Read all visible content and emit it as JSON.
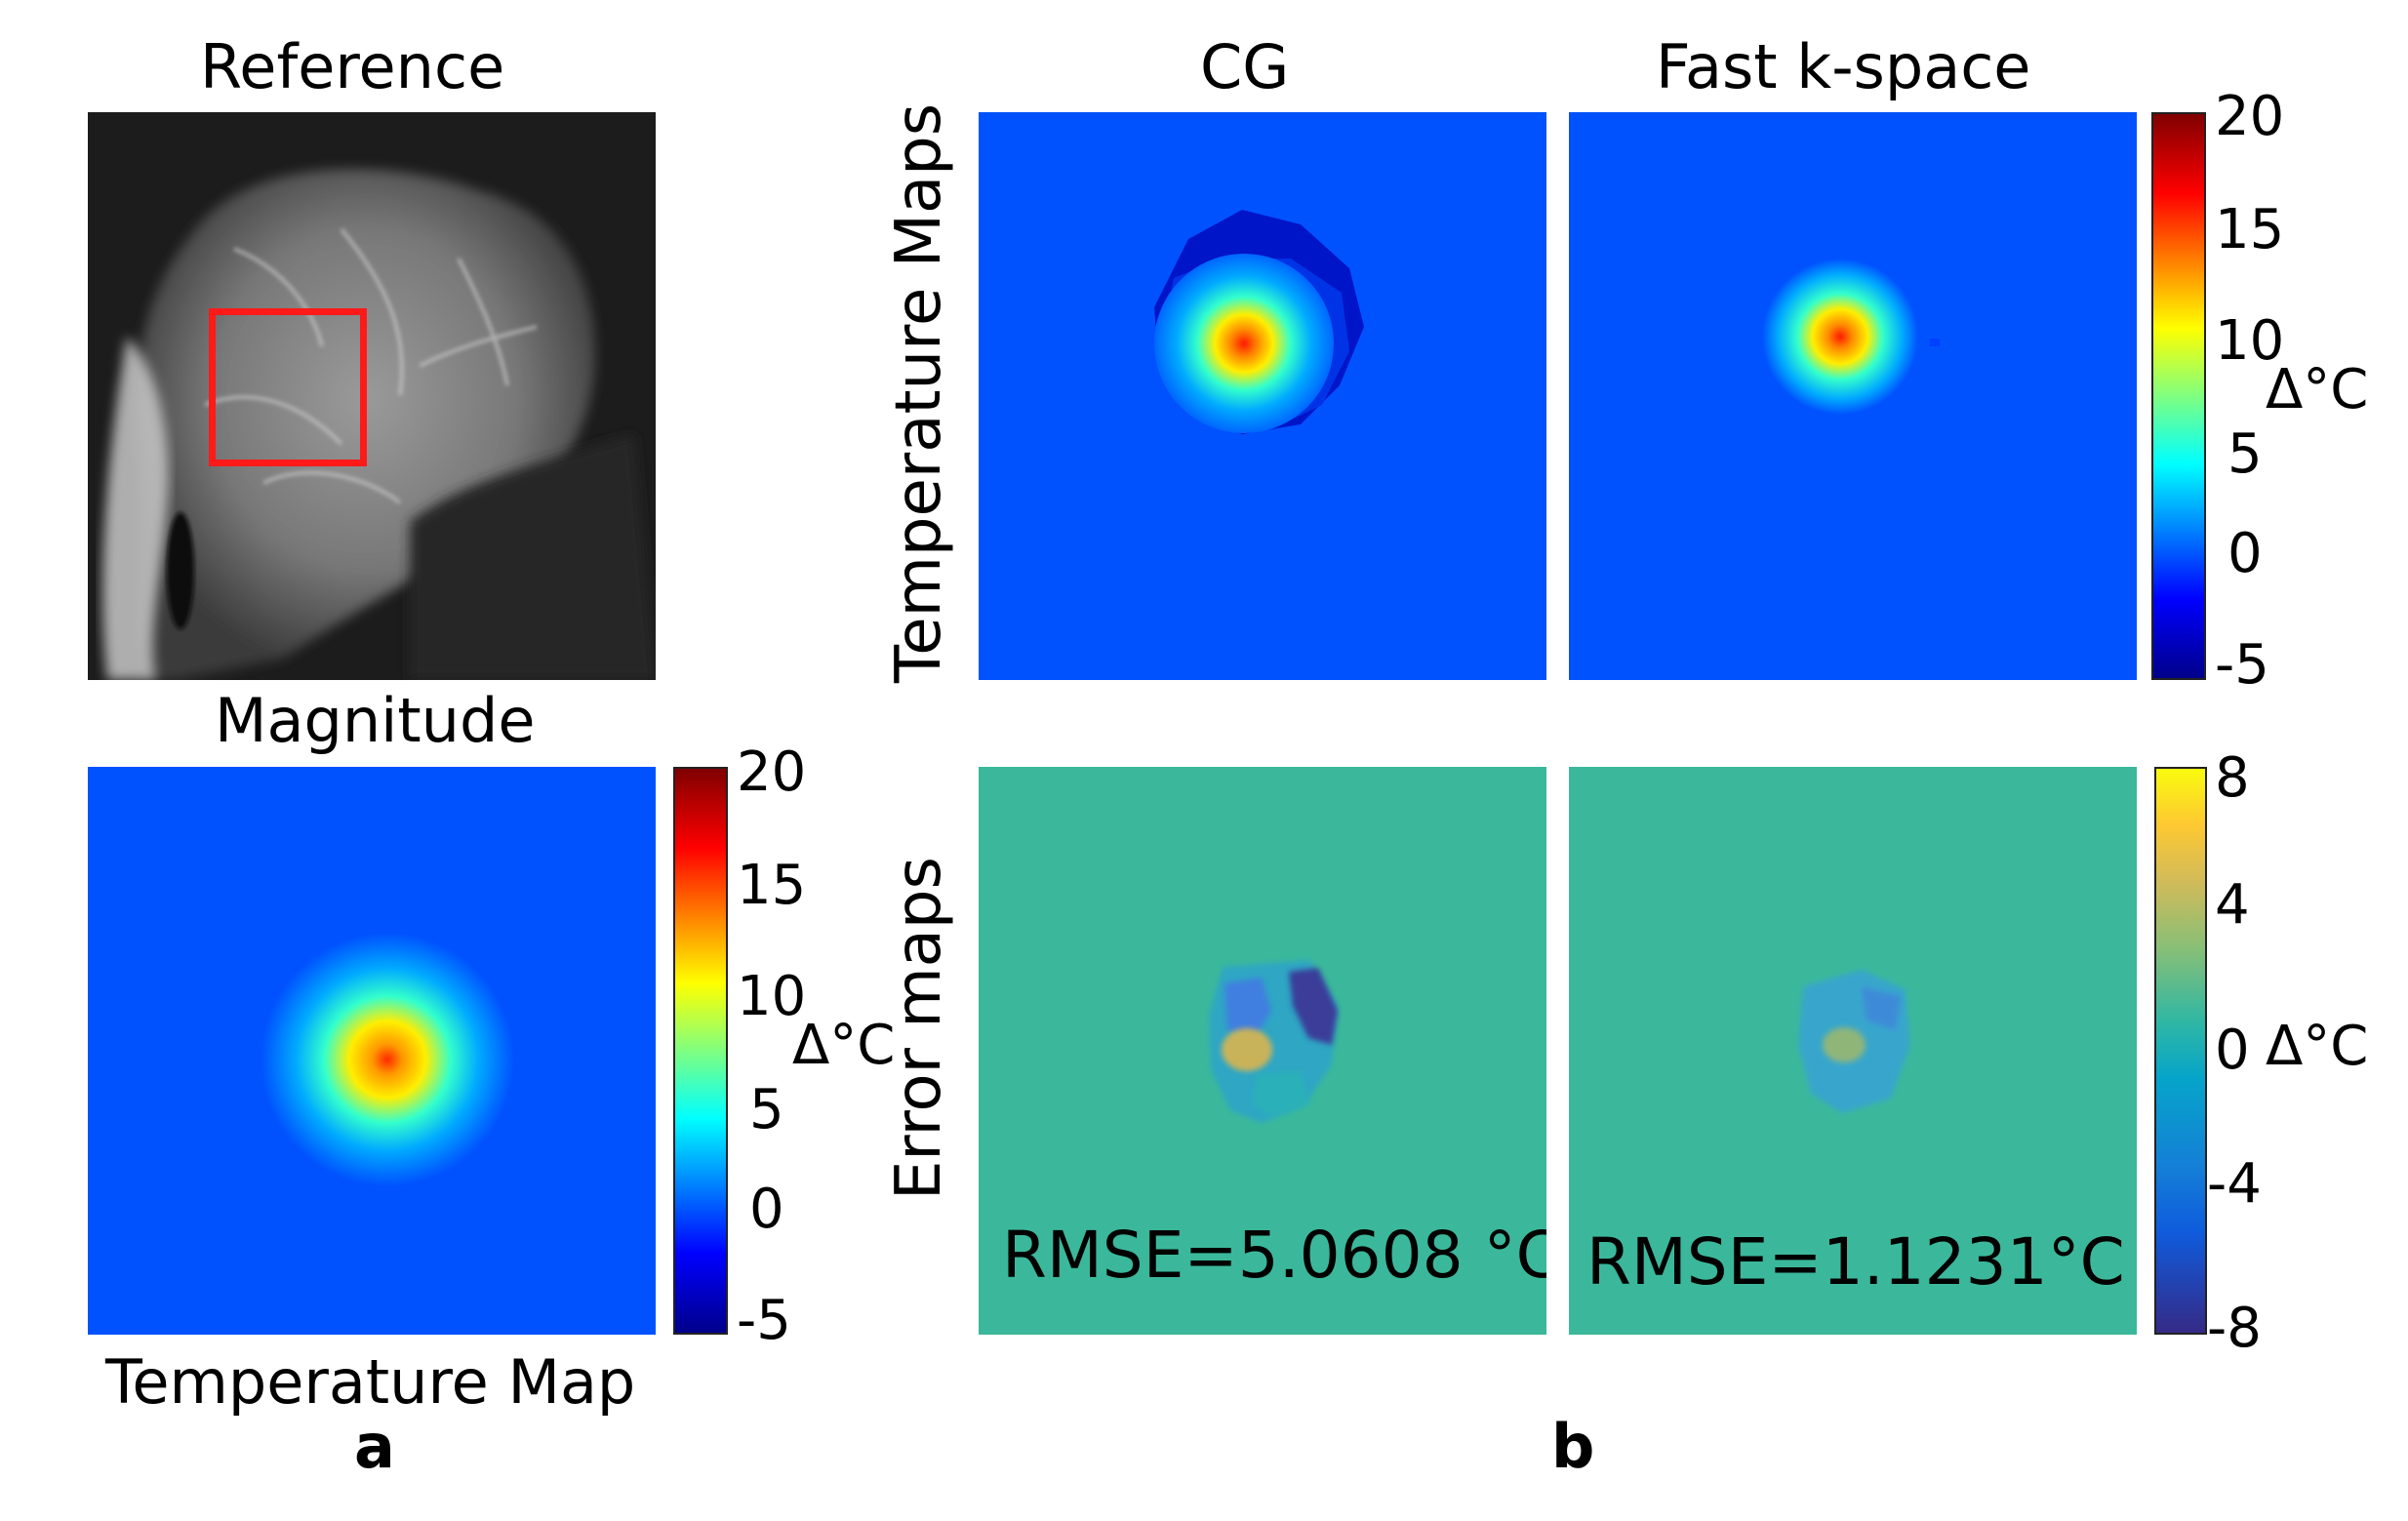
{
  "panel_a": {
    "title_top": "Reference",
    "title_middle": "Magnitude",
    "title_bottom": "Temperature Map",
    "sublabel": "a",
    "colorbar": {
      "ticks": [
        "20",
        "15",
        "10",
        "5",
        "0",
        "-5"
      ],
      "unit": "Δ°C",
      "range": [
        -5,
        20
      ],
      "colormap": "jet"
    }
  },
  "panel_b": {
    "col_titles": [
      "CG",
      "Fast k-space"
    ],
    "row_labels": [
      "Temperature Maps",
      "Error maps"
    ],
    "sublabel": "b",
    "temp_colorbar": {
      "ticks": [
        "20",
        "15",
        "10",
        "5",
        "0",
        "-5"
      ],
      "unit": "Δ°C",
      "range": [
        -5,
        20
      ],
      "colormap": "jet"
    },
    "error_colorbar": {
      "ticks": [
        "8",
        "4",
        "0",
        "-4",
        "-8"
      ],
      "unit": "Δ°C",
      "range": [
        -8,
        8
      ],
      "colormap": "parula"
    },
    "rmse": [
      "RMSE=5.0608 °C",
      "RMSE=1.1231°C"
    ]
  },
  "colors": {
    "jet_background": "#0052ff",
    "parula_background": "#3bb89b",
    "roi_box": "#ff1a1a"
  }
}
